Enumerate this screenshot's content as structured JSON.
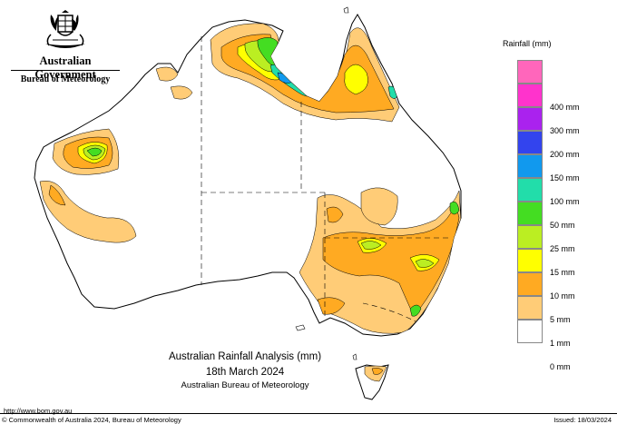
{
  "header": {
    "government": "Australian Government",
    "bureau": "Bureau of Meteorology"
  },
  "legend": {
    "title": "Rainfall (mm)",
    "items": [
      {
        "label": "",
        "color": "#ff66bb"
      },
      {
        "label": "400 mm",
        "color": "#ff33cc"
      },
      {
        "label": "300 mm",
        "color": "#aa22ee"
      },
      {
        "label": "200 mm",
        "color": "#3344ee"
      },
      {
        "label": "150 mm",
        "color": "#1199ee"
      },
      {
        "label": "100 mm",
        "color": "#22ddaa"
      },
      {
        "label": "50 mm",
        "color": "#44dd22"
      },
      {
        "label": "25 mm",
        "color": "#bbee22"
      },
      {
        "label": "15 mm",
        "color": "#ffff00"
      },
      {
        "label": "10 mm",
        "color": "#ffaa22"
      },
      {
        "label": "5 mm",
        "color": "#ffcc77"
      },
      {
        "label": "1 mm",
        "color": "#ffffff"
      },
      {
        "label": "0 mm",
        "color": ""
      }
    ]
  },
  "caption": {
    "line1": "Australian Rainfall Analysis (mm)",
    "line2": "18th March 2024",
    "line3": "Australian Bureau of Meteorology"
  },
  "footer": {
    "url": "http://www.bom.gov.au",
    "copyright": "© Commonwealth of Australia 2024, Bureau of Meteorology",
    "issued": "Issued: 18/03/2024"
  }
}
